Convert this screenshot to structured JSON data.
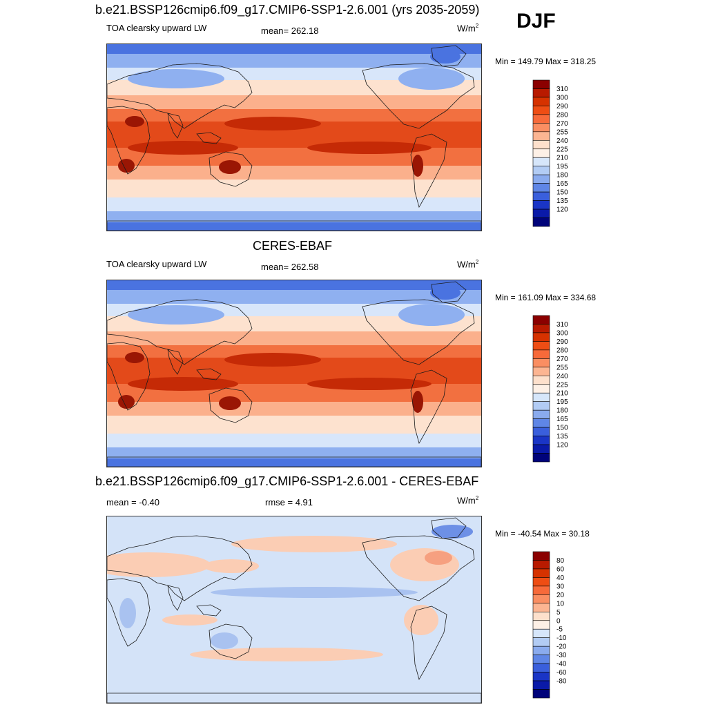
{
  "season": "DJF",
  "panels": [
    {
      "id": "model",
      "title": "b.e21.BSSP126cmip6.f09_g17.CMIP6-SSP1-2.6.001 (yrs 2035-2059)",
      "left_label": "TOA clearsky upward LW",
      "center_label": "mean= 262.18",
      "unit_base": "W/m",
      "unit_exp": "2",
      "minmax": "Min = 149.79 Max = 318.25"
    },
    {
      "id": "obs",
      "title": "CERES-EBAF",
      "left_label": "TOA clearsky upward LW",
      "center_label": "mean= 262.58",
      "unit_base": "W/m",
      "unit_exp": "2",
      "minmax": "Min = 161.09 Max = 334.68"
    },
    {
      "id": "diff",
      "title": "b.e21.BSSP126cmip6.f09_g17.CMIP6-SSP1-2.6.001 - CERES-EBAF",
      "left_label": "mean =  -0.40",
      "center_label": "rmse =    4.91",
      "unit_base": "W/m",
      "unit_exp": "2",
      "minmax": "Min = -40.54 Max =  30.18"
    }
  ],
  "colorbars": {
    "field": {
      "levels": [
        "310",
        "300",
        "290",
        "280",
        "270",
        "255",
        "240",
        "225",
        "210",
        "195",
        "180",
        "165",
        "150",
        "135",
        "120"
      ],
      "colors": [
        "#8b0000",
        "#b81a00",
        "#d63200",
        "#ee4d14",
        "#f76a3a",
        "#fa8e62",
        "#fcb592",
        "#fde0cc",
        "#fdf0e6",
        "#d6e6fa",
        "#b2ccf4",
        "#8aabee",
        "#5f86e6",
        "#3a5fdc",
        "#1a35c6",
        "#0a1aa8",
        "#00037a"
      ]
    },
    "diff": {
      "levels": [
        "80",
        "60",
        "40",
        "30",
        "20",
        "10",
        "5",
        "0",
        "-5",
        "-10",
        "-20",
        "-30",
        "-40",
        "-60",
        "-80"
      ],
      "colors": [
        "#8b0000",
        "#b81a00",
        "#d63200",
        "#ee4d14",
        "#f76a3a",
        "#fa8e62",
        "#fcb592",
        "#fde0cc",
        "#fdf0e6",
        "#d6e6fa",
        "#b2ccf4",
        "#8aabee",
        "#5f86e6",
        "#3a5fdc",
        "#1a35c6",
        "#0a1aa8",
        "#00037a"
      ]
    }
  },
  "map_colors": {
    "polar": "#4a73e0",
    "subpolar": "#8fb0f0",
    "cool": "#d8e6fa",
    "mid": "#fde2cf",
    "warm": "#fbb08c",
    "hot": "#f27040",
    "hotter": "#e34a1a",
    "hottest": "#c52a06",
    "desert": "#9a1604",
    "coast": "#1a1a1a",
    "diff_bg": "#d4e3f8",
    "diff_pos": "#fbcdb4",
    "diff_pos2": "#f6a080",
    "diff_neg": "#a9c2f0",
    "diff_neg2": "#6d90e6"
  }
}
